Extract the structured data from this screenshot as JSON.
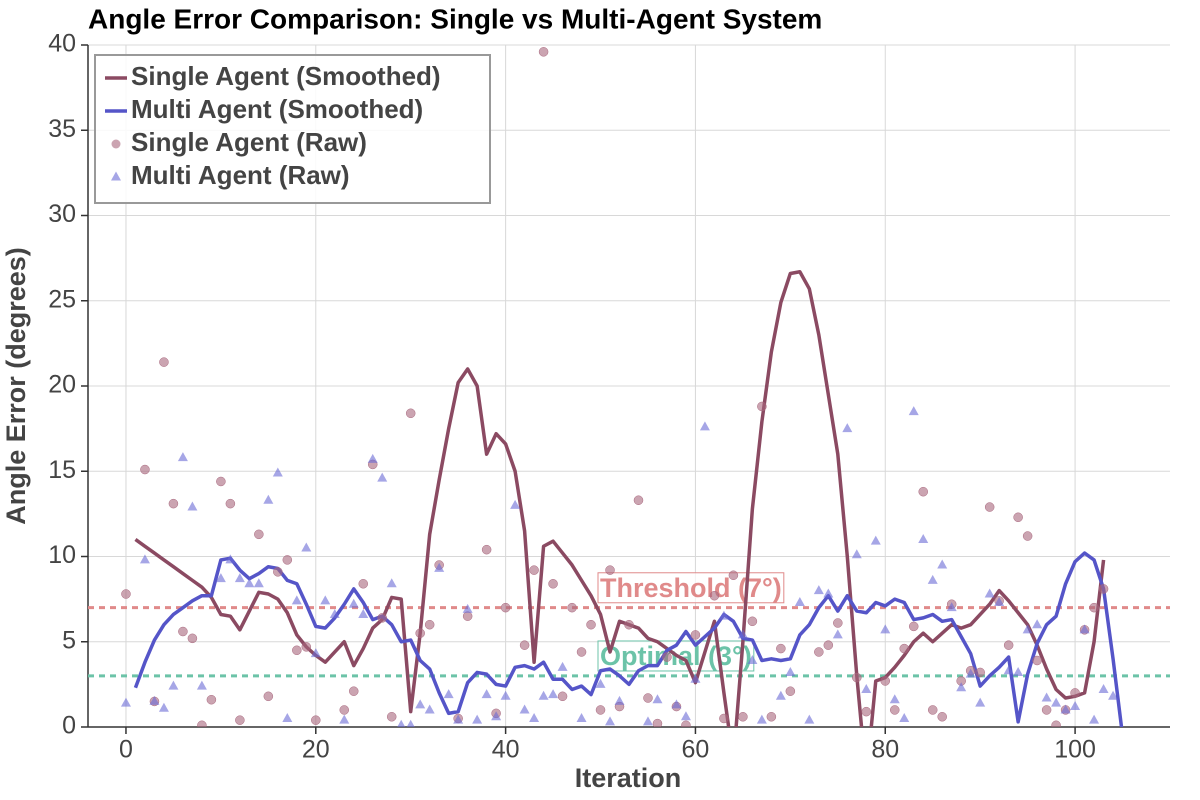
{
  "chart_data": {
    "type": "line",
    "title": "Angle Error Comparison: Single vs Multi-Agent System",
    "xlabel": "Iteration",
    "ylabel": "Angle Error (degrees)",
    "xlim": [
      -4,
      110
    ],
    "ylim": [
      0,
      40
    ],
    "xticks": [
      0,
      20,
      40,
      60,
      80,
      100
    ],
    "yticks": [
      0,
      5,
      10,
      15,
      20,
      25,
      30,
      35,
      40
    ],
    "grid": true,
    "legend": "upper left",
    "series": [
      {
        "name": "Single Agent (Smoothed)",
        "color": "#8b4a62",
        "style": "line",
        "x": [
          1,
          2,
          3,
          4,
          5,
          6,
          7,
          8,
          9,
          10,
          11,
          12,
          13,
          14,
          15,
          16,
          17,
          18,
          19,
          20,
          21,
          22,
          23,
          24,
          25,
          26,
          27,
          28,
          29,
          30,
          31,
          32,
          33,
          34,
          35,
          36,
          37,
          38,
          39,
          40,
          41,
          42,
          43,
          44,
          45,
          46,
          47,
          48,
          49,
          50,
          51,
          52,
          53,
          54,
          55,
          56,
          57,
          58,
          59,
          60,
          61,
          62,
          63,
          64,
          65,
          66,
          67,
          68,
          69,
          70,
          71,
          72,
          73,
          74,
          75,
          76,
          77,
          78,
          79,
          80,
          81,
          82,
          83,
          84,
          85,
          86,
          87,
          88,
          89,
          90,
          91,
          92,
          93,
          94,
          95,
          96,
          97,
          98,
          99,
          100,
          101,
          102,
          103
        ],
        "values": [
          11.0,
          10.6,
          10.2,
          9.8,
          9.4,
          9.0,
          8.6,
          8.2,
          7.6,
          6.6,
          6.5,
          5.7,
          6.8,
          7.9,
          7.8,
          7.5,
          6.7,
          5.4,
          4.7,
          4.2,
          3.8,
          4.4,
          5.0,
          3.6,
          4.6,
          5.8,
          6.3,
          7.6,
          7.5,
          0.9,
          5.5,
          11.3,
          14.5,
          17.5,
          20.2,
          21.0,
          20.0,
          16.0,
          17.2,
          16.6,
          15.0,
          11.5,
          3.8,
          10.6,
          10.9,
          10.2,
          9.5,
          8.6,
          7.7,
          6.6,
          4.4,
          6.2,
          6.0,
          5.8,
          5.2,
          5.0,
          4.6,
          4.2,
          3.9,
          2.6,
          4.4,
          6.2,
          2.0,
          -2.0,
          5.0,
          12.8,
          17.9,
          22.0,
          24.9,
          26.6,
          26.7,
          25.7,
          23.0,
          19.5,
          16.0,
          10.0,
          3.0,
          -3.0,
          2.7,
          2.9,
          3.5,
          4.2,
          5.0,
          5.5,
          5.0,
          5.5,
          6.0,
          5.8,
          6.0,
          6.6,
          7.2,
          8.0,
          7.4,
          6.7,
          6.0,
          4.8,
          3.4,
          2.2,
          1.7,
          1.8,
          2.0,
          5.0,
          9.8
        ]
      },
      {
        "name": "Multi Agent (Smoothed)",
        "color": "#5555c8",
        "style": "line",
        "x": [
          1,
          2,
          3,
          4,
          5,
          6,
          7,
          8,
          9,
          10,
          11,
          12,
          13,
          14,
          15,
          16,
          17,
          18,
          19,
          20,
          21,
          22,
          23,
          24,
          25,
          26,
          27,
          28,
          29,
          30,
          31,
          32,
          33,
          34,
          35,
          36,
          37,
          38,
          39,
          40,
          41,
          42,
          43,
          44,
          45,
          46,
          47,
          48,
          49,
          50,
          51,
          52,
          53,
          54,
          55,
          56,
          57,
          58,
          59,
          60,
          61,
          62,
          63,
          64,
          65,
          66,
          67,
          68,
          69,
          70,
          71,
          72,
          73,
          74,
          75,
          76,
          77,
          78,
          79,
          80,
          81,
          82,
          83,
          84,
          85,
          86,
          87,
          88,
          89,
          90,
          91,
          92,
          93,
          94,
          95,
          96,
          97,
          98,
          99,
          100,
          101,
          102,
          103,
          104,
          105
        ],
        "values": [
          2.3,
          3.8,
          5.1,
          6.0,
          6.6,
          7.0,
          7.4,
          7.7,
          7.7,
          9.8,
          9.9,
          9.2,
          8.7,
          9.0,
          9.4,
          9.3,
          8.6,
          8.4,
          7.2,
          5.9,
          5.8,
          6.4,
          7.2,
          8.1,
          7.3,
          6.3,
          6.5,
          6.0,
          5.0,
          5.1,
          3.9,
          3.4,
          2.0,
          0.8,
          0.9,
          2.6,
          3.2,
          3.1,
          2.5,
          2.4,
          3.5,
          3.6,
          3.4,
          3.8,
          2.8,
          2.8,
          2.2,
          2.4,
          1.9,
          3.3,
          3.4,
          3.0,
          2.5,
          3.3,
          3.6,
          3.6,
          4.5,
          4.8,
          5.6,
          4.8,
          5.3,
          5.8,
          6.6,
          6.2,
          5.2,
          5.1,
          3.9,
          4.0,
          3.9,
          4.0,
          5.4,
          6.0,
          7.0,
          7.7,
          6.8,
          7.7,
          6.8,
          6.7,
          7.3,
          7.1,
          7.5,
          7.3,
          6.3,
          6.4,
          6.6,
          6.2,
          6.3,
          5.3,
          4.3,
          2.4,
          3.0,
          3.5,
          4.1,
          0.3,
          3.1,
          4.9,
          6.0,
          6.5,
          8.4,
          9.7,
          10.2,
          9.8,
          8.1,
          4.0,
          -0.5
        ]
      },
      {
        "name": "Single Agent (Raw)",
        "color": "#a8677d",
        "style": "scatter",
        "marker": "circle",
        "x": [
          0,
          2,
          3,
          4,
          5,
          6,
          7,
          8,
          9,
          10,
          11,
          12,
          14,
          15,
          16,
          17,
          18,
          19,
          20,
          23,
          24,
          25,
          26,
          27,
          28,
          30,
          31,
          32,
          33,
          35,
          36,
          38,
          39,
          40,
          42,
          43,
          44,
          45,
          46,
          47,
          48,
          49,
          50,
          51,
          52,
          53,
          54,
          55,
          56,
          57,
          58,
          59,
          60,
          62,
          63,
          64,
          65,
          66,
          67,
          68,
          69,
          70,
          73,
          74,
          75,
          77,
          78,
          80,
          81,
          82,
          83,
          84,
          85,
          86,
          87,
          88,
          89,
          90,
          91,
          92,
          93,
          94,
          95,
          96,
          97,
          98,
          99,
          100,
          101,
          102,
          103
        ],
        "values": [
          7.8,
          15.1,
          1.5,
          21.4,
          13.1,
          5.6,
          5.2,
          0.1,
          1.6,
          14.4,
          13.1,
          0.4,
          11.3,
          1.8,
          9.1,
          9.8,
          4.5,
          4.7,
          0.4,
          1.0,
          2.1,
          8.4,
          15.4,
          6.4,
          0.6,
          18.4,
          5.5,
          6.0,
          9.5,
          0.5,
          6.5,
          10.4,
          0.8,
          7.0,
          4.8,
          9.2,
          39.6,
          8.4,
          1.8,
          7.0,
          4.4,
          6.0,
          1.0,
          9.2,
          1.2,
          6.0,
          13.3,
          1.7,
          0.2,
          4.1,
          1.2,
          0.1,
          5.4,
          7.7,
          0.5,
          8.9,
          0.6,
          6.2,
          18.8,
          0.6,
          4.6,
          2.1,
          4.4,
          4.8,
          6.1,
          2.9,
          0.9,
          2.7,
          1.0,
          4.6,
          5.9,
          13.8,
          1.0,
          0.6,
          7.2,
          2.7,
          3.3,
          3.2,
          12.9,
          7.4,
          4.8,
          12.3,
          11.2,
          3.9,
          1.0,
          0.1,
          1.0,
          2.0,
          5.7,
          7.0,
          8.1
        ]
      },
      {
        "name": "Multi Agent (Raw)",
        "color": "#6b6bd6",
        "style": "scatter",
        "marker": "triangle",
        "x": [
          0,
          2,
          3,
          4,
          5,
          6,
          7,
          8,
          10,
          11,
          12,
          13,
          14,
          15,
          16,
          17,
          18,
          19,
          20,
          21,
          22,
          23,
          24,
          25,
          26,
          27,
          28,
          29,
          30,
          31,
          32,
          33,
          34,
          35,
          36,
          37,
          38,
          39,
          40,
          41,
          42,
          43,
          44,
          45,
          46,
          48,
          50,
          51,
          52,
          55,
          56,
          58,
          59,
          60,
          61,
          63,
          65,
          66,
          67,
          69,
          70,
          71,
          72,
          73,
          74,
          75,
          76,
          77,
          78,
          79,
          80,
          81,
          82,
          83,
          84,
          85,
          86,
          87,
          88,
          89,
          90,
          91,
          92,
          93,
          94,
          95,
          96,
          97,
          98,
          99,
          100,
          101,
          102,
          103,
          104
        ],
        "values": [
          1.4,
          9.8,
          1.5,
          1.1,
          2.4,
          15.8,
          12.9,
          2.4,
          8.7,
          9.8,
          8.7,
          8.4,
          8.4,
          13.3,
          14.9,
          0.5,
          7.4,
          10.5,
          4.3,
          7.4,
          6.6,
          0.4,
          7.2,
          6.6,
          15.7,
          14.6,
          8.4,
          0.1,
          0.1,
          1.3,
          1.0,
          9.3,
          1.9,
          0.4,
          6.9,
          0.4,
          1.9,
          0.6,
          1.8,
          13.0,
          1.0,
          0.5,
          1.8,
          1.9,
          3.5,
          0.5,
          2.5,
          0.3,
          1.5,
          0.3,
          1.6,
          1.3,
          0.6,
          2.8,
          17.6,
          6.5,
          5.4,
          3.9,
          0.4,
          1.8,
          3.2,
          7.3,
          0.4,
          8.0,
          7.8,
          5.4,
          17.5,
          10.1,
          2.2,
          10.9,
          5.7,
          1.6,
          0.5,
          18.5,
          11.0,
          8.6,
          9.5,
          7.0,
          2.3,
          3.1,
          1.4,
          7.8,
          7.3,
          3.3,
          3.2,
          5.7,
          6.0,
          1.7,
          1.4,
          1.0,
          1.2,
          5.7,
          0.4,
          2.2,
          1.8
        ]
      }
    ],
    "hlines": [
      {
        "value": 7,
        "label": "Threshold (7°)",
        "color": "#e08a8a"
      },
      {
        "value": 3,
        "label": "Optimal (3°)",
        "color": "#6cc3a8"
      }
    ]
  }
}
